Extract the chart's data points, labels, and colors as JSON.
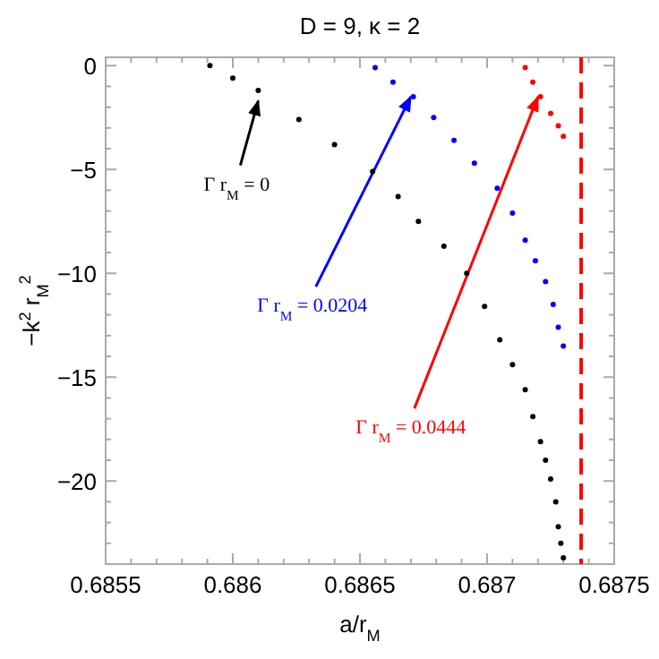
{
  "chart_data": {
    "type": "scatter",
    "title": "D = 9, κ = 2",
    "xlabel": "a/r$_{M}$",
    "ylabel": "−k$^{2}$ r$_{M}$$^{2}$",
    "marker": "circle",
    "grid": false,
    "xlim": [
      0.6855,
      0.6875
    ],
    "ylim": [
      -24,
      0.4
    ],
    "xticks": [
      0.6855,
      {
        "value": 0.6856,
        "label": null
      },
      {
        "value": 0.6857,
        "label": null
      },
      {
        "value": 0.6858,
        "label": null
      },
      {
        "value": 0.6859,
        "label": null
      },
      0.686,
      {
        "value": 0.6861,
        "label": null
      },
      {
        "value": 0.6862,
        "label": null
      },
      {
        "value": 0.6863,
        "label": null
      },
      {
        "value": 0.6864,
        "label": null
      },
      0.6865,
      {
        "value": 0.6866,
        "label": null
      },
      {
        "value": 0.6867,
        "label": null
      },
      {
        "value": 0.6868,
        "label": null
      },
      {
        "value": 0.6869,
        "label": null
      },
      0.687,
      {
        "value": 0.6871,
        "label": null
      },
      {
        "value": 0.6872,
        "label": null
      },
      {
        "value": 0.6873,
        "label": null
      },
      {
        "value": 0.6874,
        "label": null
      },
      0.6875
    ],
    "yticks": [
      -20,
      {
        "value": -24,
        "label": null
      },
      {
        "value": -23,
        "label": null
      },
      {
        "value": -22,
        "label": null
      },
      {
        "value": -21,
        "label": null
      },
      {
        "value": -19,
        "label": null
      },
      {
        "value": -18,
        "label": null
      },
      {
        "value": -17,
        "label": null
      },
      {
        "value": -16,
        "label": null
      },
      -15,
      {
        "value": -14,
        "label": null
      },
      {
        "value": -13,
        "label": null
      },
      {
        "value": -12,
        "label": null
      },
      {
        "value": -11,
        "label": null
      },
      -10,
      {
        "value": -9,
        "label": null
      },
      {
        "value": -8,
        "label": null
      },
      {
        "value": -7,
        "label": null
      },
      {
        "value": -6,
        "label": null
      },
      -5,
      {
        "value": -4,
        "label": null
      },
      {
        "value": -3,
        "label": null
      },
      {
        "value": -2,
        "label": null
      },
      {
        "value": -1,
        "label": null
      },
      0
    ],
    "series": [
      {
        "color": "#000000",
        "x": [
          0.68591,
          0.686,
          0.6861,
          0.68626,
          0.6864,
          0.68655,
          0.68665,
          0.68673,
          0.68683,
          0.68692,
          0.68699,
          0.68705,
          0.6871,
          0.68715,
          0.68718,
          0.68721,
          0.68723,
          0.68725,
          0.68727,
          0.68728,
          0.68729,
          0.6873
        ],
        "values": [
          0,
          -0.6,
          -1.2,
          -2.6,
          -3.8,
          -5.1,
          -6.3,
          -7.5,
          -8.7,
          -10,
          -11.6,
          -13.2,
          -14.4,
          -15.6,
          -16.9,
          -18.1,
          -19,
          -19.9,
          -21,
          -22.2,
          -23,
          -23.7
        ]
      },
      {
        "color": "#0000ff",
        "x": [
          0.68656,
          0.68663,
          0.68671,
          0.68679,
          0.68687,
          0.68695,
          0.68704,
          0.6871,
          0.68715,
          0.68719,
          0.68723,
          0.68726,
          0.68728,
          0.6873
        ],
        "values": [
          -0.1,
          -0.8,
          -1.5,
          -2.5,
          -3.6,
          -4.7,
          -5.9,
          -7.1,
          -8.4,
          -9.4,
          -10.4,
          -11.5,
          -12.6,
          -13.5
        ]
      },
      {
        "color": "#ff0000",
        "x": [
          0.68715,
          0.68718,
          0.68721,
          0.68725,
          0.68728,
          0.6873
        ],
        "values": [
          -0.1,
          -0.8,
          -1.5,
          -2.3,
          -2.9,
          -3.4
        ]
      }
    ],
    "ref_lines": [
      {
        "axis": "x",
        "value": 0.68737,
        "color": "#ff0000",
        "line_style": "dashed"
      }
    ],
    "annotations": [
      {
        "text": "Γ r$_{M}$ = 0",
        "x": 0.6861,
        "y": -1.7
      },
      {
        "text": "Γ r$_{M}$ = 0.0204",
        "x": 0.6867,
        "y": -1.5
      },
      {
        "text": "Γ r$_{M}$ = 0.0444",
        "x": 0.6872,
        "y": -1.5
      }
    ]
  }
}
